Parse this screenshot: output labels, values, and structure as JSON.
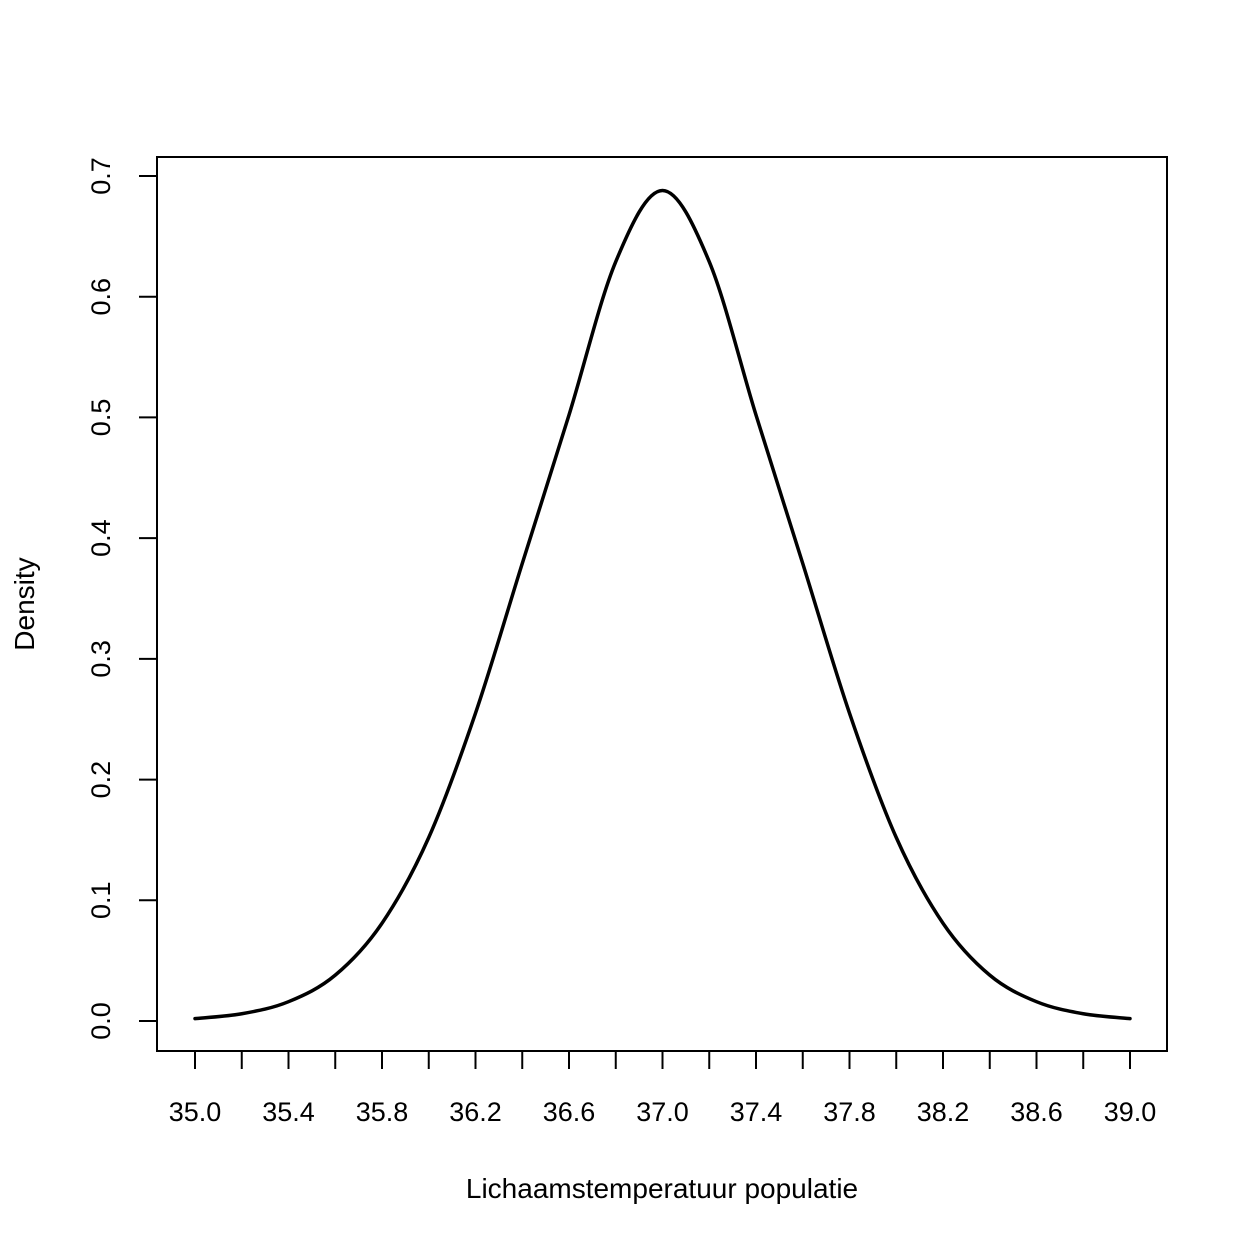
{
  "chart_data": {
    "type": "line",
    "title": "",
    "xlabel": "Lichaamstemperatuur populatie",
    "ylabel": "Density",
    "xlim": [
      35.0,
      39.0
    ],
    "ylim": [
      0.0,
      0.7
    ],
    "grid": false,
    "legend": "none",
    "line_color": "#000000",
    "x_ticks": [
      35.0,
      35.2,
      35.4,
      35.6,
      35.8,
      36.0,
      36.2,
      36.4,
      36.6,
      36.8,
      37.0,
      37.2,
      37.4,
      37.6,
      37.8,
      38.0,
      38.2,
      38.4,
      38.6,
      38.8,
      39.0
    ],
    "x_tick_labels": [
      {
        "value": 35.0,
        "label": "35.0"
      },
      {
        "value": 35.4,
        "label": "35.4"
      },
      {
        "value": 35.8,
        "label": "35.8"
      },
      {
        "value": 36.2,
        "label": "36.2"
      },
      {
        "value": 36.6,
        "label": "36.6"
      },
      {
        "value": 37.0,
        "label": "37.0"
      },
      {
        "value": 37.4,
        "label": "37.4"
      },
      {
        "value": 37.8,
        "label": "37.8"
      },
      {
        "value": 38.2,
        "label": "38.2"
      },
      {
        "value": 38.6,
        "label": "38.6"
      },
      {
        "value": 39.0,
        "label": "39.0"
      }
    ],
    "y_ticks": [
      {
        "value": 0.0,
        "label": "0.0"
      },
      {
        "value": 0.1,
        "label": "0.1"
      },
      {
        "value": 0.2,
        "label": "0.2"
      },
      {
        "value": 0.3,
        "label": "0.3"
      },
      {
        "value": 0.4,
        "label": "0.4"
      },
      {
        "value": 0.5,
        "label": "0.5"
      },
      {
        "value": 0.6,
        "label": "0.6"
      },
      {
        "value": 0.7,
        "label": "0.7"
      }
    ],
    "series": [
      {
        "x": [
          35.0,
          35.2,
          35.4,
          35.6,
          35.8,
          36.0,
          36.2,
          36.4,
          36.6,
          36.8,
          37.0,
          37.2,
          37.4,
          37.6,
          37.8,
          38.0,
          38.2,
          38.4,
          38.6,
          38.8,
          39.0
        ],
        "y": [
          0.002,
          0.006,
          0.016,
          0.038,
          0.081,
          0.152,
          0.255,
          0.379,
          0.502,
          0.629,
          0.688,
          0.629,
          0.502,
          0.379,
          0.255,
          0.152,
          0.081,
          0.038,
          0.016,
          0.006,
          0.002
        ]
      }
    ]
  }
}
